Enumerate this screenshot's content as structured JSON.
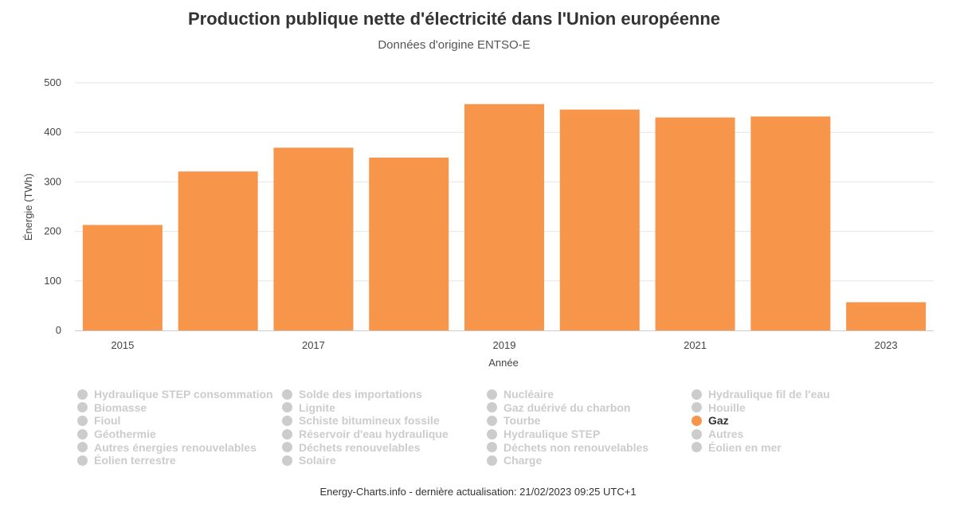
{
  "chart_data": {
    "type": "bar",
    "title": "Production publique nette d'électricité dans l'Union européenne",
    "subtitle": "Données d'origine ENTSO-E",
    "xlabel": "Année",
    "ylabel": "Énergie (TWh)",
    "ylim": [
      0,
      500
    ],
    "yticks": [
      0,
      100,
      200,
      300,
      400,
      500
    ],
    "grid": true,
    "categories": [
      "2015",
      "2016",
      "2017",
      "2018",
      "2019",
      "2020",
      "2021",
      "2022",
      "2023"
    ],
    "xtick_labels": [
      "2015",
      "",
      "2017",
      "",
      "2019",
      "",
      "2021",
      "",
      "2023"
    ],
    "series": [
      {
        "name": "Gaz",
        "values": [
          213,
          321,
          369,
          349,
          457,
          446,
          430,
          432,
          57
        ]
      }
    ],
    "bar_color": "#f7964a"
  },
  "legend": {
    "items": [
      {
        "label": "Hydraulique STEP consommation",
        "active": false
      },
      {
        "label": "Biomasse",
        "active": false
      },
      {
        "label": "Fioul",
        "active": false
      },
      {
        "label": "Géothermie",
        "active": false
      },
      {
        "label": "Autres énergies renouvelables",
        "active": false
      },
      {
        "label": "Éolien terrestre",
        "active": false
      },
      {
        "label": "Solde des importations",
        "active": false
      },
      {
        "label": "Lignite",
        "active": false
      },
      {
        "label": "Schiste bitumineux fossile",
        "active": false
      },
      {
        "label": "Réservoir d'eau hydraulique",
        "active": false
      },
      {
        "label": "Déchets renouvelables",
        "active": false
      },
      {
        "label": "Solaire",
        "active": false
      },
      {
        "label": "Nucléaire",
        "active": false
      },
      {
        "label": "Gaz duérivé du charbon",
        "active": false
      },
      {
        "label": "Tourbe",
        "active": false
      },
      {
        "label": "Hydraulique STEP",
        "active": false
      },
      {
        "label": "Déchets non renouvelables",
        "active": false
      },
      {
        "label": "Charge",
        "active": false
      },
      {
        "label": "Hydraulique fil de l'eau",
        "active": false
      },
      {
        "label": "Houille",
        "active": false
      },
      {
        "label": "Gaz",
        "active": true
      },
      {
        "label": "Autres",
        "active": false
      },
      {
        "label": "Éolien en mer",
        "active": false
      }
    ]
  },
  "footer": {
    "text": "Energy-Charts.info - dernière actualisation: 21/02/2023 09:25 UTC+1"
  }
}
